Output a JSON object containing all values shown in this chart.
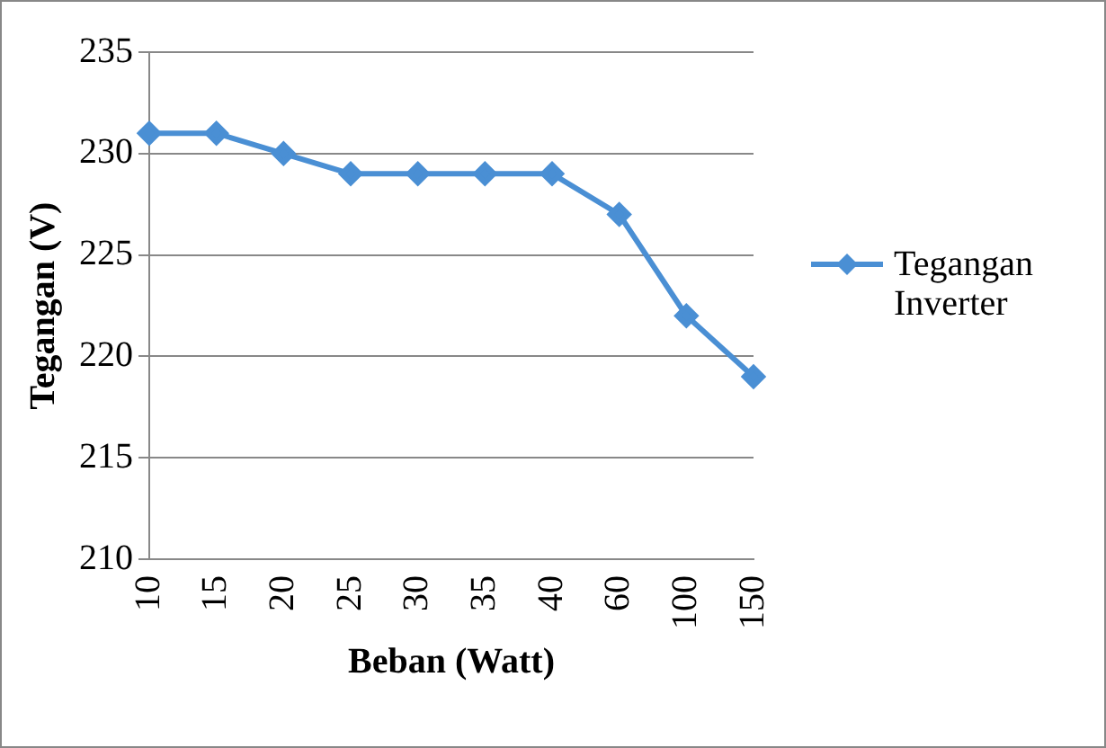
{
  "chart_data": {
    "type": "line",
    "xlabel": "Beban (Watt)",
    "ylabel": "Tegangan (V)",
    "categories": [
      "10",
      "15",
      "20",
      "25",
      "30",
      "35",
      "40",
      "60",
      "100",
      "150"
    ],
    "series": [
      {
        "name": "Tegangan Inverter",
        "color": "#4a8fd4",
        "values": [
          231,
          231,
          230,
          229,
          229,
          229,
          229,
          227,
          222,
          219
        ]
      }
    ],
    "ylim": [
      210,
      235
    ],
    "yticks": [
      210,
      215,
      220,
      225,
      230,
      235
    ],
    "grid": "y",
    "legend": "right",
    "marker": "diamond",
    "line_style": "solid"
  }
}
